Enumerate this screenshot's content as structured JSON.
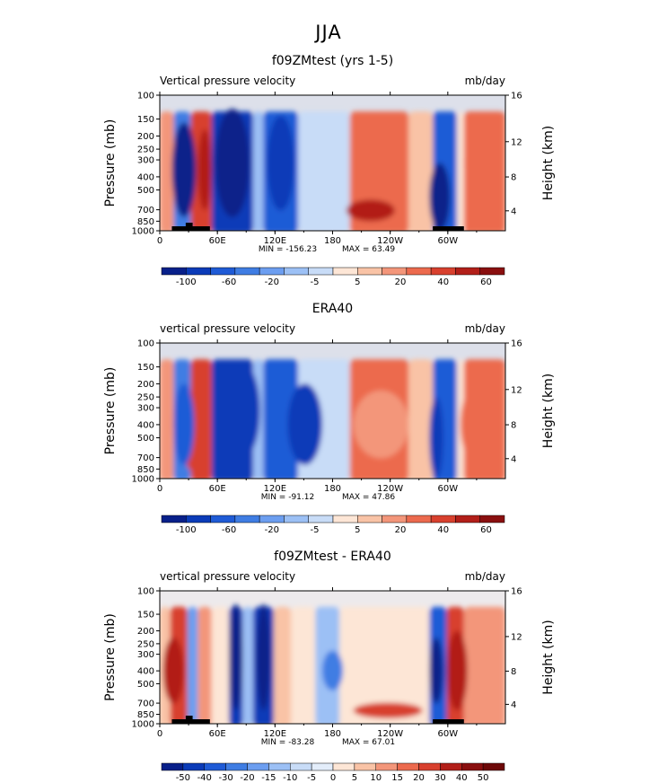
{
  "figure": {
    "suptitle": "JJA"
  },
  "colors": {
    "shared": [
      "#08208a",
      "#0b3bb8",
      "#1f5bd6",
      "#3f7de3",
      "#6c9ef0",
      "#9cc0f5",
      "#c8dcf7",
      "#fde6d6",
      "#f9c3a6",
      "#f3967a",
      "#ec6a4e",
      "#d8402e",
      "#b21f19",
      "#8a0f0f"
    ],
    "diff": [
      "#08208a",
      "#0b3bb8",
      "#1f5bd6",
      "#3f7de3",
      "#6c9ef0",
      "#9cc0f5",
      "#c8dcf7",
      "#e3edfa",
      "#fde6d6",
      "#f9c3a6",
      "#f3967a",
      "#ec6a4e",
      "#d8402e",
      "#b21f19",
      "#8a0f0f",
      "#6d0808"
    ]
  },
  "chart_data": [
    {
      "type": "heatmap",
      "title": "f09ZMtest (yrs 1-5)",
      "left_label": "Vertical pressure velocity",
      "right_label": "mb/day",
      "ylabel": "Pressure (mb)",
      "y2label": "Height (km)",
      "xticks": [
        "0",
        "60E",
        "120E",
        "180",
        "120W",
        "60W"
      ],
      "yticks": [
        "100",
        "150",
        "200",
        "250",
        "300",
        "400",
        "500",
        "700",
        "850",
        "1000"
      ],
      "y2ticks": [
        "16",
        "12",
        "8",
        "4"
      ],
      "min_label": "MIN = -156.23",
      "max_label": "MAX = 63.49",
      "colorbar_labels": [
        "-100",
        "-60",
        "-20",
        "-5",
        "5",
        "20",
        "40",
        "60"
      ],
      "topography": true,
      "palette": "shared"
    },
    {
      "type": "heatmap",
      "title": "ERA40",
      "left_label": "vertical pressure velocity",
      "right_label": "mb/day",
      "ylabel": "Pressure (mb)",
      "y2label": "Height (km)",
      "xticks": [
        "0",
        "60E",
        "120E",
        "180",
        "120W",
        "60W"
      ],
      "yticks": [
        "100",
        "150",
        "200",
        "250",
        "300",
        "400",
        "500",
        "700",
        "850",
        "1000"
      ],
      "y2ticks": [
        "16",
        "12",
        "8",
        "4"
      ],
      "min_label": "MIN = -91.12",
      "max_label": "MAX = 47.86",
      "colorbar_labels": [
        "-100",
        "-60",
        "-20",
        "-5",
        "5",
        "20",
        "40",
        "60"
      ],
      "topography": false,
      "palette": "shared"
    },
    {
      "type": "heatmap",
      "title": "f09ZMtest - ERA40",
      "left_label": "vertical pressure velocity",
      "right_label": "mb/day",
      "ylabel": "Pressure (mb)",
      "y2label": "Height (km)",
      "xticks": [
        "0",
        "60E",
        "120E",
        "180",
        "120W",
        "60W"
      ],
      "yticks": [
        "100",
        "150",
        "200",
        "250",
        "300",
        "400",
        "500",
        "700",
        "850",
        "1000"
      ],
      "y2ticks": [
        "16",
        "12",
        "8",
        "4"
      ],
      "min_label": "MIN = -83.28",
      "max_label": "MAX = 67.01",
      "colorbar_labels": [
        "-50",
        "-40",
        "-30",
        "-20",
        "-15",
        "-10",
        "-5",
        "0",
        "5",
        "10",
        "15",
        "20",
        "30",
        "40",
        "50"
      ],
      "topography": true,
      "palette": "diff"
    }
  ]
}
